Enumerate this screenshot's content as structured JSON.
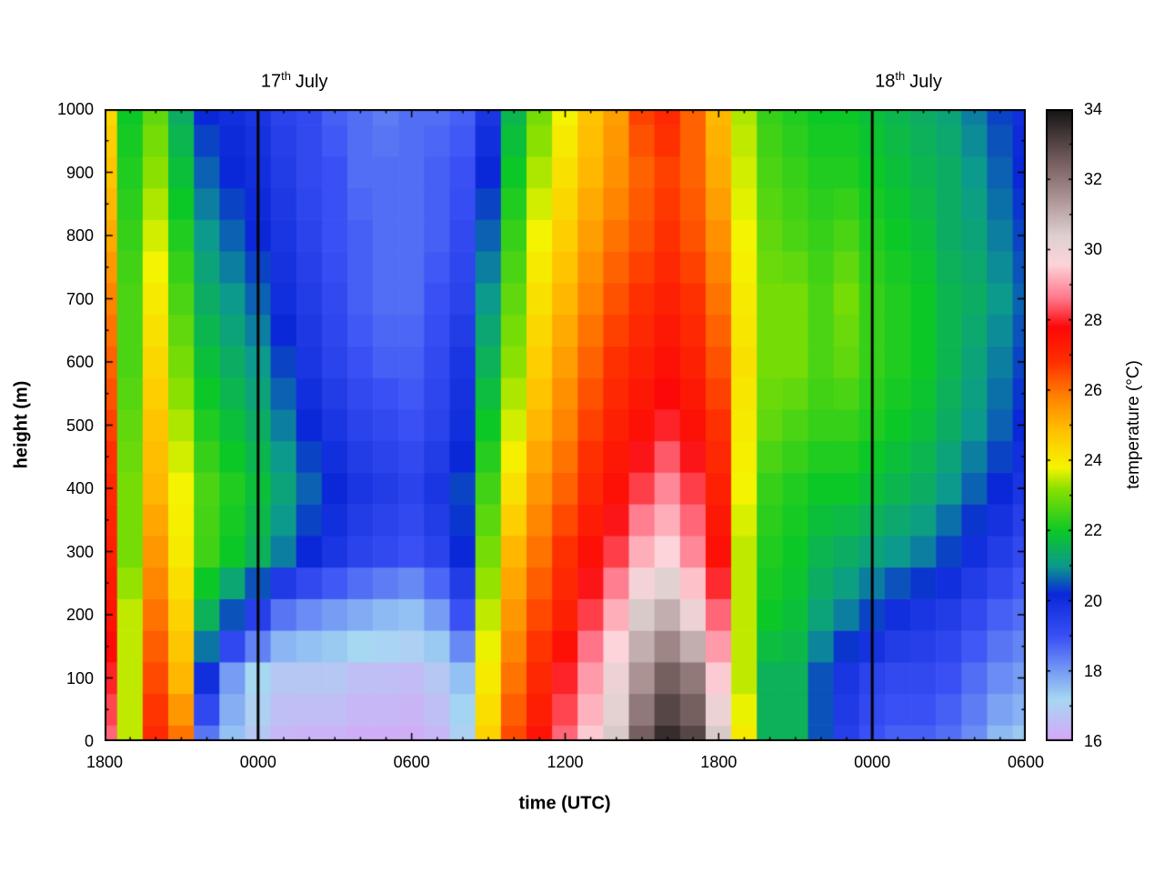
{
  "chart_data": {
    "type": "heatmap",
    "title": "",
    "x_axis": {
      "label": "time (UTC)",
      "range_hours": [
        0,
        36
      ],
      "time_step_hours": 1,
      "minor_tick_hours": 1,
      "ticks": [
        {
          "hours": 0,
          "label": "1800"
        },
        {
          "hours": 6,
          "label": "0000"
        },
        {
          "hours": 12,
          "label": "0600"
        },
        {
          "hours": 18,
          "label": "1200"
        },
        {
          "hours": 24,
          "label": "1800"
        },
        {
          "hours": 30,
          "label": "0000"
        },
        {
          "hours": 36,
          "label": "0600"
        }
      ]
    },
    "y_axis": {
      "label": "height (m)",
      "range": [
        0,
        1000
      ],
      "minor_tick": 50,
      "ticks": [
        0,
        100,
        200,
        300,
        400,
        500,
        600,
        700,
        800,
        900,
        1000
      ]
    },
    "colorbar": {
      "label": "temperature (°C)",
      "range": [
        16,
        34
      ],
      "ticks": [
        16,
        18,
        20,
        22,
        24,
        26,
        28,
        30,
        32,
        34
      ]
    },
    "day_lines_hours": [
      6,
      30
    ],
    "annotations": [
      {
        "day": "17",
        "suffix": "th",
        "month": "July",
        "hour": 6
      },
      {
        "day": "18",
        "suffix": "th",
        "month": "July",
        "hour": 30
      }
    ],
    "heights_m": [
      0,
      100,
      200,
      300,
      400,
      500,
      600,
      700,
      800,
      900,
      1000
    ],
    "temperature_grid_note": "rows bottom-to-top matching heights_m; columns hourly from 1800 UTC 16 July to 0600 UTC 18 July",
    "temperature_grid": [
      [
        28.5,
        23.5,
        27.0,
        26.0,
        18.5,
        17.5,
        16.8,
        16.4,
        16.3,
        16.3,
        16.2,
        16.2,
        16.2,
        16.4,
        17.0,
        24.5,
        26.5,
        27.5,
        28.5,
        29.5,
        30.5,
        32.5,
        33.5,
        33.0,
        30.5,
        24.0,
        21.5,
        21.5,
        20.5,
        19.5,
        19.0,
        18.8,
        18.8,
        18.6,
        18.2,
        17.6,
        17.4
      ],
      [
        28.0,
        23.5,
        26.5,
        25.0,
        20.0,
        18.0,
        17.2,
        16.8,
        16.8,
        16.8,
        16.6,
        16.6,
        16.5,
        16.8,
        17.5,
        24.0,
        26.0,
        27.0,
        28.0,
        29.0,
        30.0,
        31.5,
        32.5,
        32.0,
        29.5,
        23.5,
        21.5,
        21.5,
        20.5,
        19.8,
        19.4,
        19.2,
        19.2,
        19.0,
        18.6,
        18.2,
        18.0
      ],
      [
        27.5,
        23.5,
        26.0,
        24.5,
        21.5,
        20.5,
        19.5,
        18.5,
        18.2,
        18.0,
        17.8,
        17.6,
        17.5,
        18.0,
        19.0,
        23.5,
        25.5,
        26.5,
        27.2,
        28.2,
        29.2,
        30.5,
        31.0,
        30.0,
        28.5,
        23.5,
        22.0,
        21.8,
        21.2,
        20.8,
        20.4,
        20.0,
        19.8,
        19.6,
        19.2,
        18.8,
        18.6
      ],
      [
        27.2,
        23.0,
        25.5,
        24.0,
        22.5,
        22.0,
        21.5,
        20.8,
        20.2,
        19.8,
        19.4,
        19.2,
        19.0,
        19.4,
        20.2,
        23.0,
        25.0,
        26.0,
        26.8,
        27.6,
        28.2,
        29.2,
        29.6,
        28.8,
        27.6,
        23.5,
        22.2,
        22.0,
        21.6,
        21.4,
        21.2,
        21.0,
        20.8,
        20.4,
        20.0,
        19.6,
        19.2
      ],
      [
        27.0,
        23.0,
        25.0,
        23.8,
        22.6,
        22.2,
        21.8,
        21.2,
        20.6,
        20.2,
        19.8,
        19.6,
        19.4,
        19.8,
        20.4,
        22.5,
        24.2,
        25.5,
        26.2,
        27.0,
        27.6,
        28.2,
        28.8,
        28.2,
        27.2,
        23.8,
        22.4,
        22.2,
        22.0,
        22.0,
        21.8,
        21.6,
        21.4,
        21.0,
        20.6,
        20.2,
        19.8
      ],
      [
        26.6,
        22.8,
        24.8,
        23.4,
        22.2,
        21.8,
        21.4,
        20.8,
        20.2,
        19.8,
        19.4,
        19.2,
        19.0,
        19.4,
        20.0,
        22.0,
        23.6,
        25.0,
        25.8,
        26.6,
        27.2,
        27.6,
        28.0,
        27.6,
        26.8,
        24.0,
        22.8,
        22.6,
        22.4,
        22.4,
        22.2,
        22.0,
        21.8,
        21.4,
        21.0,
        20.6,
        20.2
      ],
      [
        26.2,
        22.6,
        24.4,
        23.0,
        21.8,
        21.4,
        21.0,
        20.4,
        19.8,
        19.4,
        19.0,
        18.8,
        18.8,
        19.2,
        19.8,
        21.5,
        23.2,
        24.6,
        25.4,
        26.2,
        26.8,
        27.2,
        27.6,
        27.2,
        26.4,
        24.2,
        23.0,
        23.0,
        22.6,
        22.8,
        22.4,
        22.2,
        22.0,
        21.6,
        21.2,
        20.8,
        20.4
      ],
      [
        25.8,
        22.6,
        24.0,
        22.6,
        21.4,
        21.0,
        20.6,
        20.0,
        19.6,
        19.2,
        18.8,
        18.6,
        18.6,
        19.0,
        19.4,
        21.0,
        22.8,
        24.2,
        25.0,
        25.8,
        26.4,
        26.8,
        27.2,
        26.8,
        26.0,
        24.0,
        23.0,
        23.0,
        22.6,
        23.0,
        22.4,
        22.2,
        22.0,
        21.6,
        21.4,
        21.0,
        20.6
      ],
      [
        25.2,
        22.4,
        23.6,
        22.2,
        21.0,
        20.6,
        20.2,
        19.8,
        19.4,
        19.0,
        18.8,
        18.6,
        18.6,
        18.8,
        19.2,
        20.6,
        22.4,
        23.8,
        24.6,
        25.4,
        26.0,
        26.4,
        26.8,
        26.4,
        25.6,
        23.8,
        22.8,
        22.6,
        22.4,
        22.6,
        22.2,
        22.0,
        21.8,
        21.4,
        21.2,
        20.8,
        20.4
      ],
      [
        24.8,
        22.2,
        23.2,
        21.8,
        20.6,
        20.2,
        20.0,
        19.6,
        19.2,
        19.0,
        18.6,
        18.6,
        18.6,
        18.8,
        19.0,
        20.2,
        22.0,
        23.4,
        24.2,
        25.0,
        25.6,
        26.2,
        26.6,
        26.2,
        25.2,
        23.6,
        22.6,
        22.4,
        22.2,
        22.2,
        22.0,
        21.8,
        21.6,
        21.4,
        21.0,
        20.6,
        20.2
      ],
      [
        24.4,
        22.0,
        22.8,
        21.4,
        20.2,
        20.0,
        19.8,
        19.4,
        19.2,
        18.8,
        18.6,
        18.4,
        18.6,
        18.6,
        18.8,
        19.8,
        21.6,
        23.0,
        23.8,
        24.8,
        25.4,
        26.6,
        27.0,
        26.2,
        25.0,
        23.4,
        22.4,
        22.2,
        22.0,
        22.0,
        21.8,
        21.6,
        21.4,
        21.2,
        20.8,
        20.4,
        20.0
      ]
    ],
    "palette_stops": [
      [
        16.0,
        "#d8a6f8"
      ],
      [
        17.2,
        "#a6d8f2"
      ],
      [
        19.0,
        "#3a50f5"
      ],
      [
        20.2,
        "#0a28d8"
      ],
      [
        21.0,
        "#0c9a8c"
      ],
      [
        22.0,
        "#0cc826"
      ],
      [
        23.2,
        "#8ae000"
      ],
      [
        23.8,
        "#f4f400"
      ],
      [
        24.8,
        "#ffc400"
      ],
      [
        25.8,
        "#ff8400"
      ],
      [
        26.8,
        "#ff3000"
      ],
      [
        27.8,
        "#fc0808"
      ],
      [
        28.6,
        "#ff7488"
      ],
      [
        29.6,
        "#fcd4da"
      ],
      [
        30.4,
        "#ded0d0"
      ],
      [
        31.4,
        "#b09898"
      ],
      [
        32.4,
        "#7c6464"
      ],
      [
        33.2,
        "#4a3c3c"
      ],
      [
        34.0,
        "#141414"
      ]
    ],
    "frame_color": "#000000",
    "day_line_color": "#000000"
  }
}
